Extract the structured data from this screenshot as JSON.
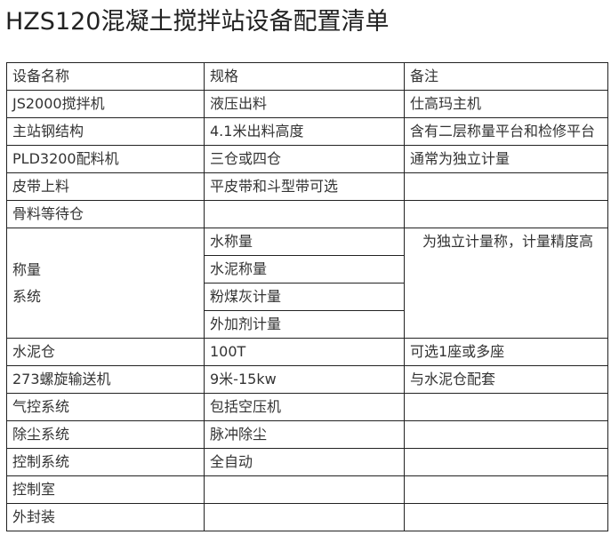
{
  "title": "HZS120混凝土搅拌站设备配置清单",
  "headers": [
    "设备名称",
    "规格",
    "备注"
  ],
  "rows": [
    [
      "JS2000搅拌机",
      "液压出料",
      "仕高玛主机"
    ],
    [
      "主站钢结构",
      "4.1米出料高度",
      "含有二层称量平台和检修平台"
    ],
    [
      "PLD3200配料机",
      "三仓或四仓",
      "通常为独立计量"
    ],
    [
      "皮带上料",
      "平皮带和斗型带可选",
      ""
    ],
    [
      "骨料等待仓",
      "",
      ""
    ]
  ],
  "weighing": {
    "name_line1": "称量",
    "name_line2": "系统",
    "specs": [
      "水称量",
      "水泥称量",
      "粉煤灰计量",
      "外加剂计量"
    ],
    "note": "为独立计量称，计量精度高"
  },
  "rows2": [
    [
      "水泥仓",
      "100T",
      "可选1座或多座"
    ],
    [
      "273螺旋输送机",
      "9米-15kw",
      "与水泥仓配套"
    ],
    [
      "气控系统",
      "包括空压机",
      ""
    ],
    [
      "除尘系统",
      "脉冲除尘",
      ""
    ],
    [
      "控制系统",
      "全自动",
      ""
    ],
    [
      "控制室",
      "",
      ""
    ],
    [
      "外封装",
      "",
      ""
    ]
  ]
}
